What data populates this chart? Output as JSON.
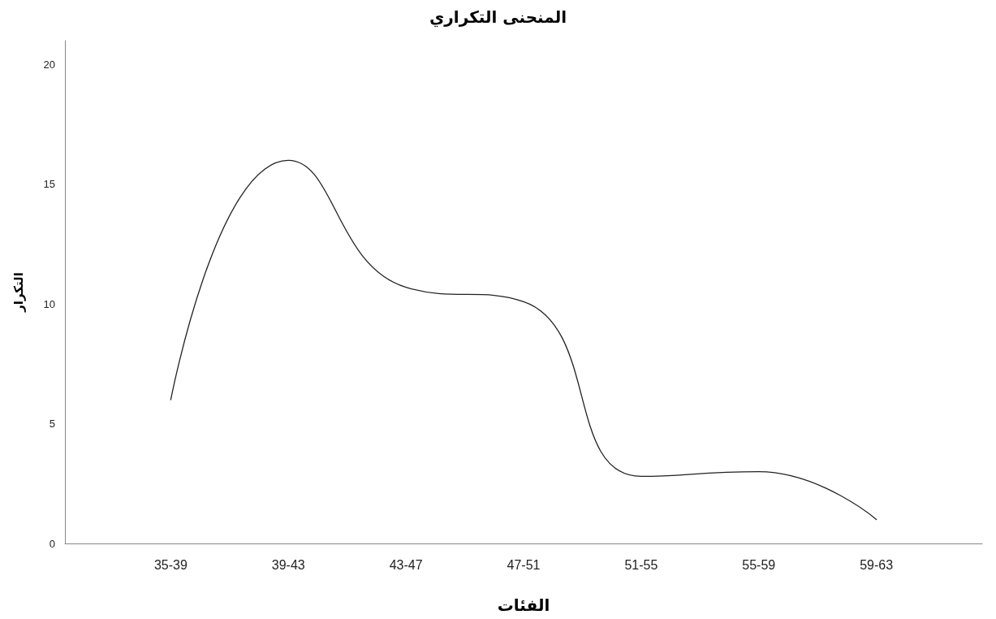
{
  "chart_data": {
    "type": "line",
    "title": "المنحنى التكراري",
    "xlabel": "الفئات",
    "ylabel": "التكرار",
    "categories": [
      "35-39",
      "39-43",
      "43-47",
      "47-51",
      "51-55",
      "55-59",
      "59-63"
    ],
    "series": [
      {
        "color": "#222222",
        "values": [
          6,
          16,
          10.7,
          10.1,
          2.8,
          3,
          1
        ]
      }
    ],
    "ylim": [
      0,
      21
    ],
    "yticks": [
      0,
      5,
      10,
      15,
      20
    ],
    "grid": false,
    "marker": "none",
    "line_style": "solid"
  }
}
